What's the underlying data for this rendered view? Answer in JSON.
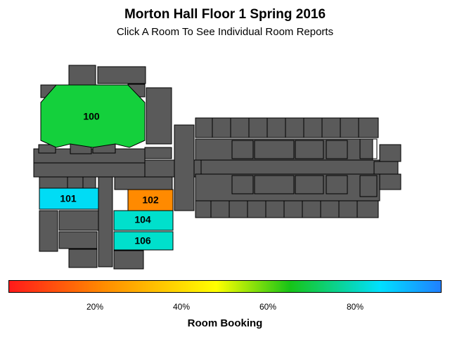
{
  "title": "Morton Hall Floor 1 Spring 2016",
  "subtitle": "Click A Room To See Individual Room Reports",
  "rooms": [
    {
      "id": "100",
      "label": "100",
      "color": "#14d03c"
    },
    {
      "id": "101",
      "label": "101",
      "color": "#00dcf5"
    },
    {
      "id": "102",
      "label": "102",
      "color": "#ff8a00"
    },
    {
      "id": "104",
      "label": "104",
      "color": "#00e0cc"
    },
    {
      "id": "106",
      "label": "106",
      "color": "#00e0cc"
    }
  ],
  "color_scale": {
    "label": "Room Booking",
    "ticks": [
      "20%",
      "40%",
      "60%",
      "80%"
    ]
  },
  "colors": {
    "building": "#5a5a5a"
  }
}
